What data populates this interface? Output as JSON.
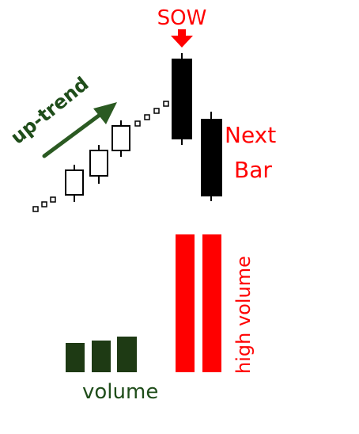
{
  "labels": {
    "signal": "SOW",
    "trend": "up-trend",
    "next_line1": "Next",
    "next_line2": "Bar",
    "volume": "volume",
    "high_volume": "high volume"
  },
  "colors": {
    "signal": "#ff0000",
    "trend": "#1f4d1a",
    "candle_bearish": "#000000",
    "candle_bullish": "#ffffff",
    "volume_low": "#1e3a14",
    "volume_high": "#ff0000"
  },
  "icons": [
    "down-arrow-icon",
    "trend-arrow-icon"
  ]
}
